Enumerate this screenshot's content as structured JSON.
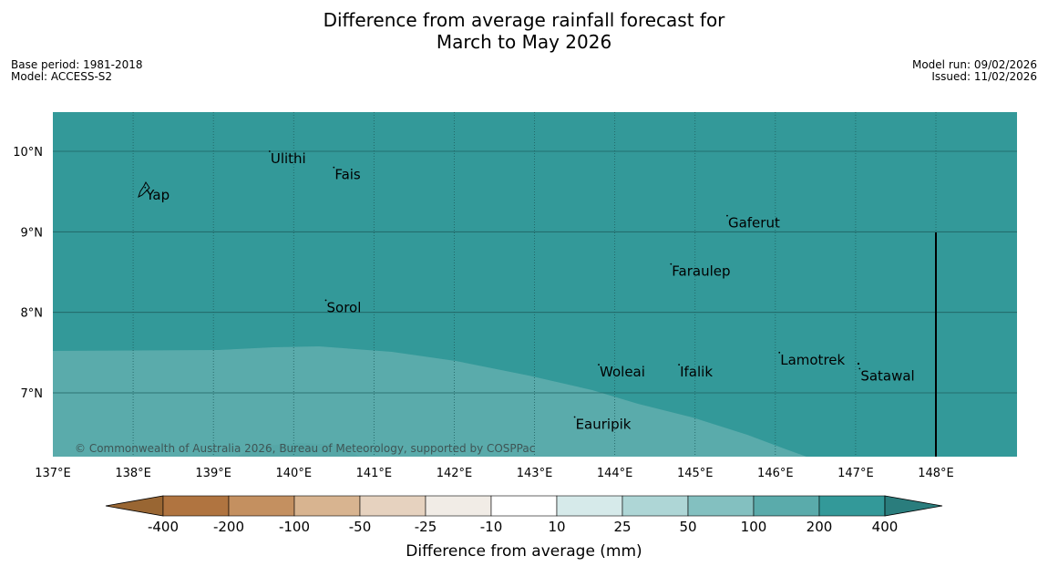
{
  "title_line1": "Difference from average rainfall forecast for",
  "title_line2": "March to May 2026",
  "base_period": "Base period: 1981-2018",
  "model": "Model: ACCESS-S2",
  "model_run": "Model run: 09/02/2026",
  "issued": "Issued: 11/02/2026",
  "copyright": "© Commonwealth of Australia 2026, Bureau of Meteorology, supported by COSPPac",
  "map": {
    "lon_range": [
      137,
      149
    ],
    "lat_range": [
      6.2,
      10.5
    ],
    "lon_ticks": [
      "137°E",
      "138°E",
      "139°E",
      "140°E",
      "141°E",
      "142°E",
      "143°E",
      "144°E",
      "145°E",
      "146°E",
      "147°E",
      "148°E"
    ],
    "lat_ticks": [
      "10°N",
      "9°N",
      "8°N",
      "7°N"
    ],
    "background_category": "200 to 400 mm",
    "background_color": "#339999",
    "lower_zone_category": "100 to 200 mm",
    "lower_zone_color": "#5aabab",
    "places": [
      {
        "name": "Yap",
        "lon": 138.15,
        "lat": 9.55
      },
      {
        "name": "Ulithi",
        "lon": 139.7,
        "lat": 10.0
      },
      {
        "name": "Fais",
        "lon": 140.5,
        "lat": 9.8
      },
      {
        "name": "Gaferut",
        "lon": 145.4,
        "lat": 9.2
      },
      {
        "name": "Faraulep",
        "lon": 144.7,
        "lat": 8.6
      },
      {
        "name": "Sorol",
        "lon": 140.4,
        "lat": 8.15
      },
      {
        "name": "Lamotrek",
        "lon": 146.05,
        "lat": 7.5
      },
      {
        "name": "Woleai",
        "lon": 143.8,
        "lat": 7.35
      },
      {
        "name": "Ifalik",
        "lon": 144.8,
        "lat": 7.35
      },
      {
        "name": "Satawal",
        "lon": 147.05,
        "lat": 7.3
      },
      {
        "name": "Eauripik",
        "lon": 143.5,
        "lat": 6.7
      }
    ]
  },
  "colorbar": {
    "label": "Difference from average (mm)",
    "ticks": [
      "-400",
      "-200",
      "-100",
      "-50",
      "-25",
      "-10",
      "10",
      "25",
      "50",
      "100",
      "200",
      "400"
    ],
    "colors": [
      "#996633",
      "#b07440",
      "#c49060",
      "#d8b490",
      "#e6d2bf",
      "#f1ece6",
      "#ffffff",
      "#d6eaea",
      "#aed6d6",
      "#83c0c0",
      "#5aabab",
      "#339999",
      "#2a7d7d"
    ]
  }
}
